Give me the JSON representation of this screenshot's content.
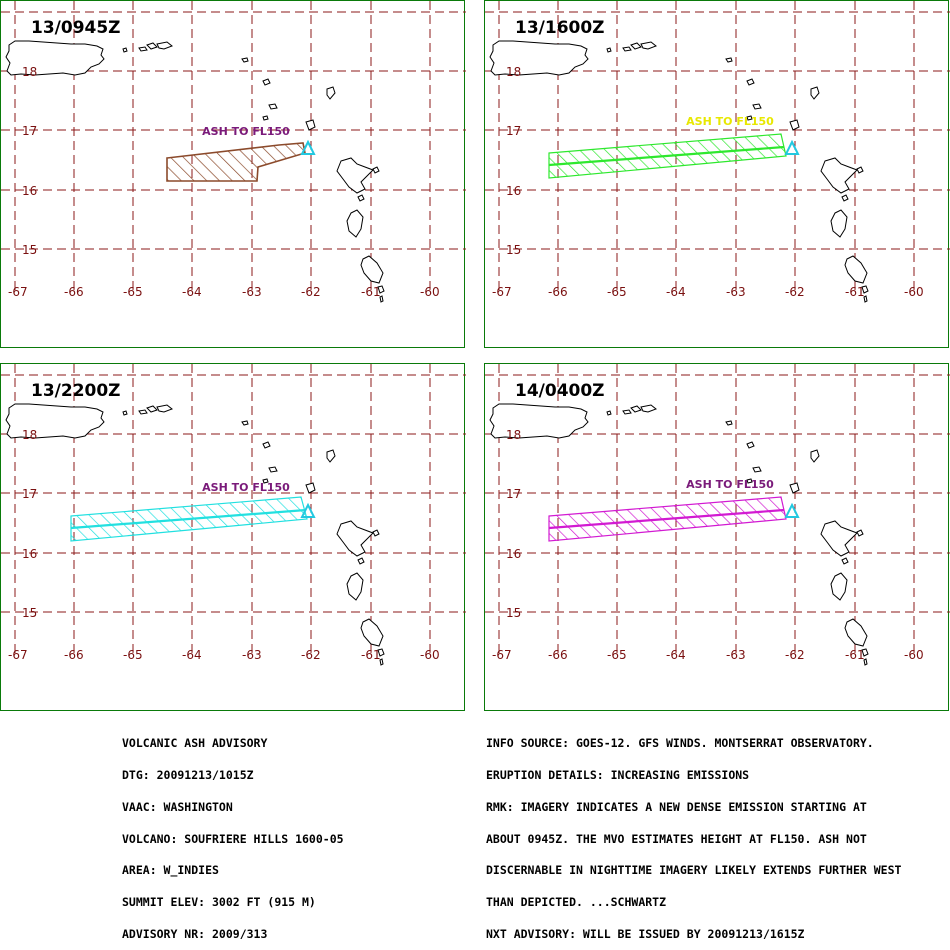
{
  "panels": [
    {
      "title": "13/0945Z",
      "ash_label": "ASH TO FL150",
      "label_color": "#7a1a7a",
      "color": "#8b4a2b",
      "kind": "box"
    },
    {
      "title": "13/1600Z",
      "ash_label": "ASH  TO  FL150",
      "label_color": "#e8e800",
      "color": "#2ee82e",
      "kind": "strip"
    },
    {
      "title": "13/2200Z",
      "ash_label": "ASH TO FL150",
      "label_color": "#7a1a7a",
      "color": "#22e0e0",
      "kind": "strip_long"
    },
    {
      "title": "14/0400Z",
      "ash_label": "ASH TO FL150",
      "label_color": "#7a1a7a",
      "color": "#d21ad2",
      "kind": "strip"
    }
  ],
  "map": {
    "lon_labels": [
      "-67",
      "-66",
      "-65",
      "-64",
      "-63",
      "-62",
      "-61",
      "-60"
    ],
    "lat_labels": [
      "18",
      "17",
      "16",
      "15"
    ],
    "volcano_color": "#22c8e0"
  },
  "advisory": {
    "lines": [
      "VOLCANIC ASH ADVISORY",
      "DTG: 20091213/1015Z",
      "VAAC: WASHINGTON",
      "VOLCANO: SOUFRIERE HILLS 1600-05",
      "AREA: W_INDIES",
      "SUMMIT ELEV: 3002 FT (915 M)",
      "ADVISORY NR: 2009/313"
    ]
  },
  "info": {
    "lines": [
      "INFO SOURCE: GOES-12. GFS WINDS. MONTSERRAT OBSERVATORY.",
      "ERUPTION DETAILS: INCREASING EMISSIONS",
      "RMK: IMAGERY INDICATES A NEW DENSE EMISSION STARTING AT",
      "ABOUT 0945Z. THE MVO ESTIMATES HEIGHT AT FL150. ASH NOT",
      "DISCERNABLE IN NIGHTTIME IMAGERY LIKELY EXTENDS FURTHER WEST",
      "THAN DEPICTED. ...SCHWARTZ",
      "NXT ADVISORY: WILL BE ISSUED BY 20091213/1615Z"
    ]
  }
}
